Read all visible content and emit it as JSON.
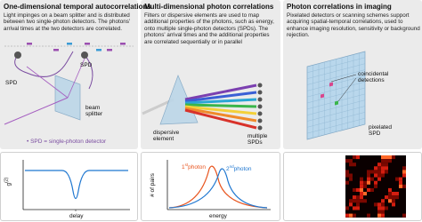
{
  "panels": [
    {
      "title": "One-dimensional temporal autocorrelations",
      "body": "Light impinges on a beam splitter and is distributed between two single-photon detectors. The photons' arrival times at the two detectors are correlated.",
      "labels": [
        "SPD",
        "SPD",
        "beam\nsplitter",
        "• SPD = single-photon detector"
      ],
      "plot": {
        "y_label": {
          "base": "g",
          "sup": "(2)"
        },
        "x_label": "delay"
      }
    },
    {
      "title": "Multi-dimensional photon correlations",
      "body": "Filters or dispersive elements are used to map additional properties of the photons, such as energy, onto multiple single-photon detectors (SPDs). The photons' arrival times and the additional properties are correlated sequentially or in parallel",
      "labels": [
        "dispersive\nelement",
        "multiple\nSPDs"
      ],
      "plot": {
        "y_label": "# of pairs",
        "x_label": "energy",
        "curve_labels": [
          {
            "base": "1",
            "sup": "st",
            "rest": "photon"
          },
          {
            "base": "2",
            "sup": "nd",
            "rest": "photon"
          }
        ]
      }
    },
    {
      "title": "Photon correlations in imaging",
      "body": "Pixelated detectors or scanning schemes support acquiring spatial-temporal correlations, used to enhance imaging resolution, sensitivity or background rejection.",
      "labels": [
        "coincidental\ndetections",
        "pixelated\nSPD"
      ]
    }
  ]
}
